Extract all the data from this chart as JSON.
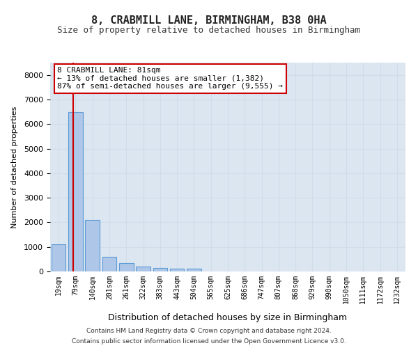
{
  "title1": "8, CRABMILL LANE, BIRMINGHAM, B38 0HA",
  "title2": "Size of property relative to detached houses in Birmingham",
  "xlabel": "Distribution of detached houses by size in Birmingham",
  "ylabel": "Number of detached properties",
  "categories": [
    "19sqm",
    "79sqm",
    "140sqm",
    "201sqm",
    "261sqm",
    "322sqm",
    "383sqm",
    "443sqm",
    "504sqm",
    "565sqm",
    "625sqm",
    "686sqm",
    "747sqm",
    "807sqm",
    "868sqm",
    "929sqm",
    "990sqm",
    "1050sqm",
    "1111sqm",
    "1172sqm",
    "1232sqm"
  ],
  "values": [
    1100,
    6500,
    2100,
    600,
    350,
    200,
    150,
    100,
    100,
    0,
    0,
    0,
    0,
    0,
    0,
    0,
    0,
    0,
    0,
    0,
    0
  ],
  "bar_color": "#aec6e8",
  "bar_edge_color": "#5b9bd5",
  "grid_color": "#d0dce8",
  "background_color": "#dce6f1",
  "annotation_text": "8 CRABMILL LANE: 81sqm\n← 13% of detached houses are smaller (1,382)\n87% of semi-detached houses are larger (9,555) →",
  "annotation_box_color": "#ffffff",
  "annotation_box_edge": "#cc0000",
  "vline_x": 1,
  "vline_color": "#cc0000",
  "ylim": [
    0,
    8500
  ],
  "yticks": [
    0,
    1000,
    2000,
    3000,
    4000,
    5000,
    6000,
    7000,
    8000
  ],
  "footer1": "Contains HM Land Registry data © Crown copyright and database right 2024.",
  "footer2": "Contains public sector information licensed under the Open Government Licence v3.0."
}
